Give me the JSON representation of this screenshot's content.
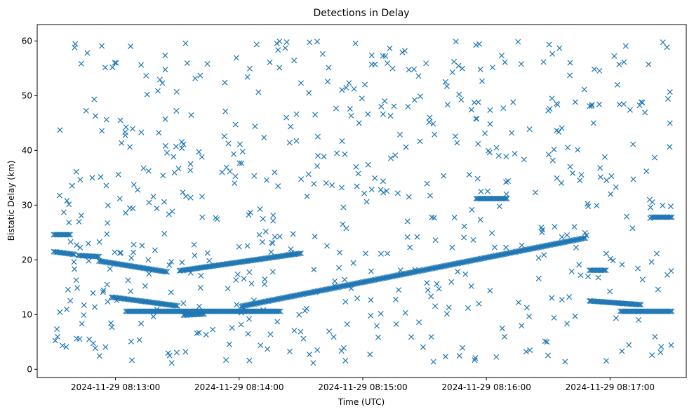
{
  "chart_data": {
    "type": "scatter",
    "title": "Detections in Delay",
    "xlabel": "Time (UTC)",
    "ylabel": "Bistatic Delay (km)",
    "xlim": [
      "2024-11-29 08:12:22",
      "2024-11-29 08:17:37"
    ],
    "ylim": [
      -1.5,
      63
    ],
    "x_ticks": [
      "2024-11-29 08:13:00",
      "2024-11-29 08:14:00",
      "2024-11-29 08:15:00",
      "2024-11-29 08:16:00",
      "2024-11-29 08:17:00"
    ],
    "y_ticks": [
      0,
      10,
      20,
      30,
      40,
      50,
      60
    ],
    "marker": "x",
    "grid": false,
    "colors": {
      "series": "#1f77b4"
    },
    "series": [
      {
        "tracks": [
          {
            "start": "2024-11-29 08:12:30",
            "end": "2024-11-29 08:12:40",
            "y_start": 21.5,
            "y_end": 21.0
          },
          {
            "start": "2024-11-29 08:12:42",
            "end": "2024-11-29 08:12:52",
            "y_start": 20.8,
            "y_end": 20.6
          },
          {
            "start": "2024-11-29 08:12:52",
            "end": "2024-11-29 08:13:25",
            "y_start": 19.8,
            "y_end": 17.8
          },
          {
            "start": "2024-11-29 08:12:58",
            "end": "2024-11-29 08:13:30",
            "y_start": 13.2,
            "y_end": 11.6
          },
          {
            "start": "2024-11-29 08:13:31",
            "end": "2024-11-29 08:14:30",
            "y_start": 18.0,
            "y_end": 21.2
          },
          {
            "start": "2024-11-29 08:13:33",
            "end": "2024-11-29 08:13:43",
            "y_start": 9.9,
            "y_end": 10.1
          },
          {
            "start": "2024-11-29 08:14:01",
            "end": "2024-11-29 08:16:48",
            "y_start": 11.5,
            "y_end": 24.0
          },
          {
            "start": "2024-11-29 08:16:50",
            "end": "2024-11-29 08:17:15",
            "y_start": 12.5,
            "y_end": 11.8
          },
          {
            "start": "2024-11-29 08:16:50",
            "end": "2024-11-29 08:16:58",
            "y_start": 18.1,
            "y_end": 18.1
          },
          {
            "start": "2024-11-29 08:17:20",
            "end": "2024-11-29 08:17:30",
            "y_start": 27.8,
            "y_end": 27.8
          },
          {
            "start": "2024-11-29 08:13:05",
            "end": "2024-11-29 08:14:20",
            "y_start": 10.6,
            "y_end": 10.6
          },
          {
            "start": "2024-11-29 08:15:55",
            "end": "2024-11-29 08:16:10",
            "y_start": 31.2,
            "y_end": 31.2
          },
          {
            "start": "2024-11-29 08:12:30",
            "end": "2024-11-29 08:12:38",
            "y_start": 24.6,
            "y_end": 24.6
          },
          {
            "start": "2024-11-29 08:17:05",
            "end": "2024-11-29 08:17:30",
            "y_start": 10.6,
            "y_end": 10.6
          }
        ]
      }
    ]
  }
}
